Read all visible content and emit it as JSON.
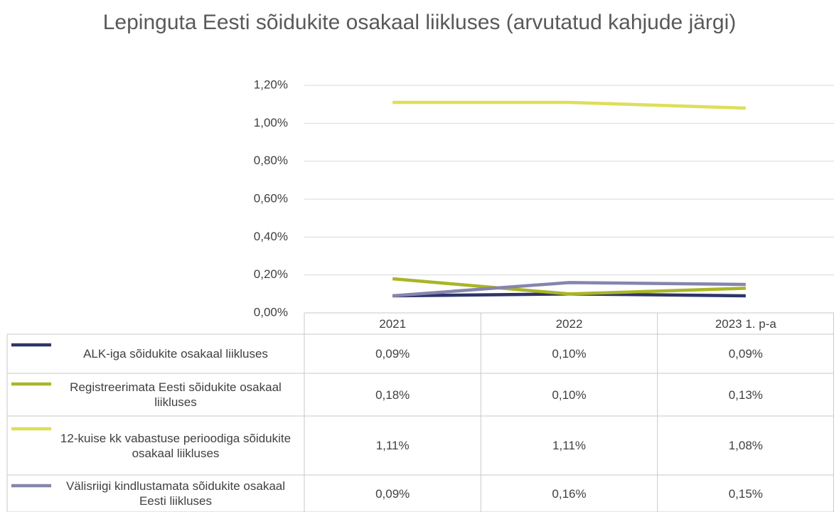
{
  "chart_data": {
    "type": "line",
    "title": "Lepinguta Eesti sõidukite osakaal liikluses (arvutatud kahjude järgi)",
    "categories": [
      "2021",
      "2022",
      "2023 1. p-a"
    ],
    "series": [
      {
        "name": "ALK-iga sõidukite osakaal liikluses",
        "color": "#2e3567",
        "values": [
          0.09,
          0.1,
          0.09
        ],
        "value_labels": [
          "0,09%",
          "0,10%",
          "0,09%"
        ]
      },
      {
        "name": "Registreerimata Eesti sõidukite osakaal liikluses",
        "color": "#a9b526",
        "values": [
          0.18,
          0.1,
          0.13
        ],
        "value_labels": [
          "0,18%",
          "0,10%",
          "0,13%"
        ]
      },
      {
        "name": "12-kuise kk vabastuse perioodiga sõidukite osakaal liikluses",
        "color": "#dede5a",
        "values": [
          1.11,
          1.11,
          1.08
        ],
        "value_labels": [
          "1,11%",
          "1,11%",
          "1,08%"
        ]
      },
      {
        "name": "Välisriigi kindlustamata sõidukite osakaal Eesti liikluses",
        "color": "#8585ad",
        "values": [
          0.09,
          0.16,
          0.15
        ],
        "value_labels": [
          "0,09%",
          "0,16%",
          "0,15%"
        ]
      }
    ],
    "ylim": [
      0,
      1.2
    ],
    "yticks": [
      {
        "value": 0,
        "label": "0,00%"
      },
      {
        "value": 0.2,
        "label": "0,20%"
      },
      {
        "value": 0.4,
        "label": "0,40%"
      },
      {
        "value": 0.6,
        "label": "0,60%"
      },
      {
        "value": 0.8,
        "label": "0,80%"
      },
      {
        "value": 1.0,
        "label": "1,00%"
      },
      {
        "value": 1.2,
        "label": "1,20%"
      }
    ],
    "grid": true,
    "data_table": true
  }
}
